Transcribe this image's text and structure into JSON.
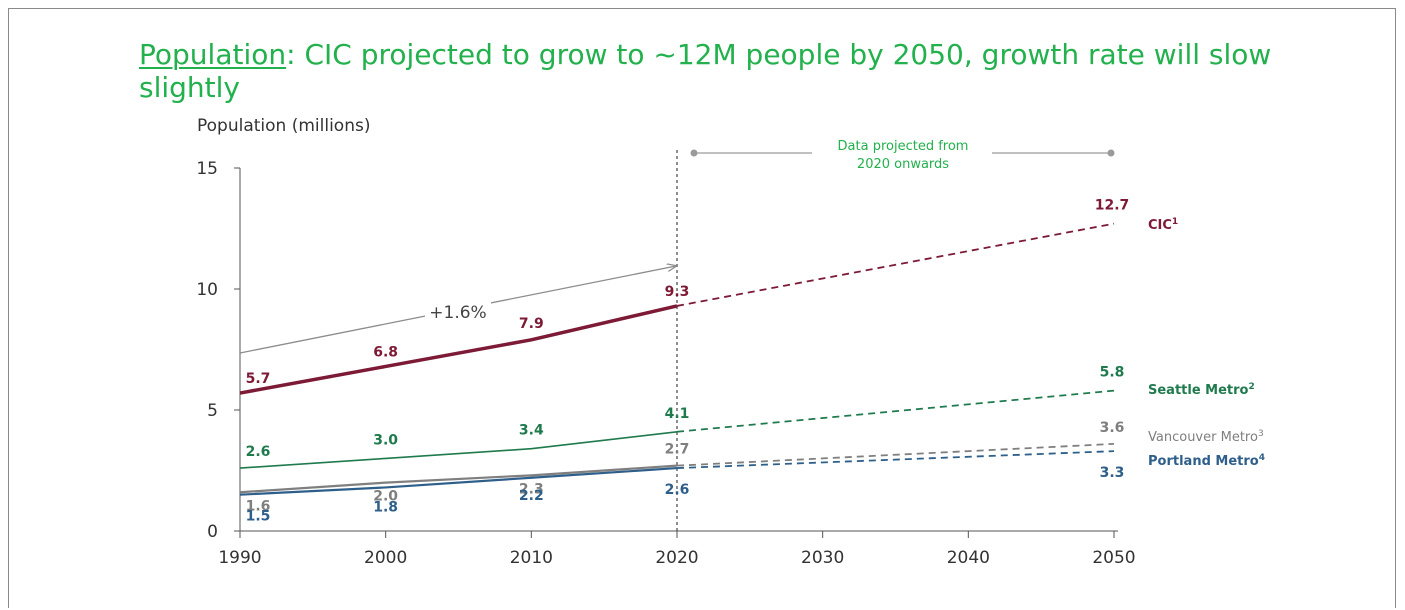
{
  "title": {
    "underlined": "Population",
    "rest": ": CIC projected to grow to ~12M people by 2050, growth rate will slow slightly"
  },
  "chart_data": {
    "type": "line",
    "ylabel": "Population (millions)",
    "xlabel": "",
    "xlim": [
      1990,
      2050
    ],
    "ylim": [
      0,
      15
    ],
    "x_ticks": [
      "1990",
      "2000",
      "2010",
      "2020",
      "2030",
      "2040",
      "2050"
    ],
    "y_ticks": [
      "0",
      "5",
      "10",
      "15"
    ],
    "projection_start": 2020,
    "projection_label": "Data projected from 2020 onwards",
    "growth_annotation": "+1.6%",
    "grid": false,
    "series": [
      {
        "name": "CIC",
        "superscript": "1",
        "color": "#7d1a36",
        "x": [
          1990,
          2000,
          2010,
          2020,
          2050
        ],
        "values": [
          5.7,
          6.8,
          7.9,
          9.3,
          12.7
        ],
        "labels": [
          "5.7",
          "6.8",
          "7.9",
          "9.3",
          "12.7"
        ]
      },
      {
        "name": "Seattle Metro",
        "superscript": "2",
        "color": "#1f7a4d",
        "x": [
          1990,
          2000,
          2010,
          2020,
          2050
        ],
        "values": [
          2.6,
          3.0,
          3.4,
          4.1,
          5.8
        ],
        "labels": [
          "2.6",
          "3.0",
          "3.4",
          "4.1",
          "5.8"
        ]
      },
      {
        "name": "Vancouver Metro",
        "superscript": "3",
        "color": "#7f7f7f",
        "x": [
          1990,
          2000,
          2010,
          2020,
          2050
        ],
        "values": [
          1.6,
          2.0,
          2.3,
          2.7,
          3.6
        ],
        "labels": [
          "1.6",
          "2.0",
          "2.3",
          "2.7",
          "3.6"
        ]
      },
      {
        "name": "Portland Metro",
        "superscript": "4",
        "color": "#2e5f8a",
        "x": [
          1990,
          2000,
          2010,
          2020,
          2050
        ],
        "values": [
          1.5,
          1.8,
          2.2,
          2.6,
          3.3
        ],
        "labels": [
          "1.5",
          "1.8",
          "2.2",
          "2.6",
          "3.3"
        ]
      }
    ]
  }
}
